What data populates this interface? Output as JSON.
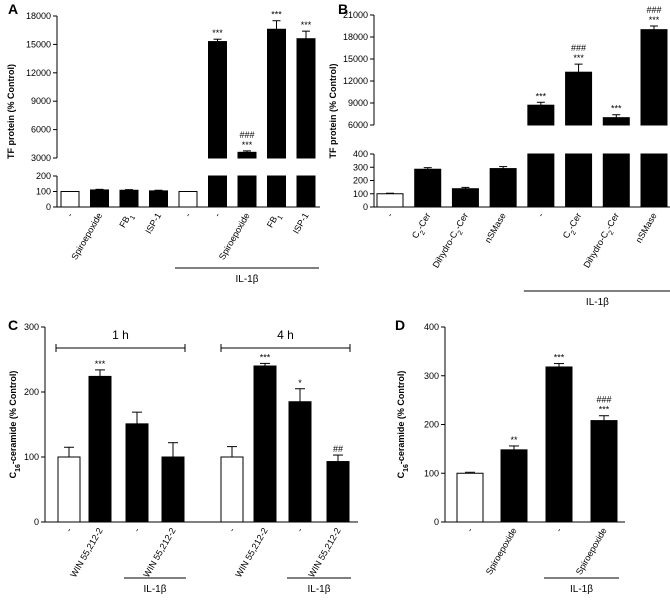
{
  "chart_data": [
    {
      "panel": "A",
      "type": "bar",
      "ylabel": "TF protein (% Control)",
      "broken_axis": true,
      "ylim_lower": [
        0,
        200
      ],
      "ylim_upper": [
        3000,
        18000
      ],
      "yticks_lower": [
        0,
        100,
        200
      ],
      "yticks_upper": [
        3000,
        6000,
        9000,
        12000,
        15000,
        18000
      ],
      "categories": [
        "-",
        "Spiroepoxide",
        "FB1",
        "ISP-1",
        "-",
        "-",
        "Spiroepoxide",
        "FB1",
        "ISP-1"
      ],
      "values": [
        100,
        110,
        108,
        104,
        100,
        15300,
        3600,
        16600,
        15600
      ],
      "errors": [
        0,
        4,
        4,
        4,
        0,
        250,
        150,
        900,
        800
      ],
      "filled": [
        false,
        true,
        true,
        true,
        false,
        true,
        true,
        true,
        true
      ],
      "significance": [
        "",
        "",
        "",
        "",
        "",
        "***",
        "###\n***",
        "***",
        "***"
      ],
      "group_label": "IL-1β"
    },
    {
      "panel": "B",
      "type": "bar",
      "ylabel": "TF protein (% Control)",
      "broken_axis": true,
      "ylim_lower": [
        0,
        400
      ],
      "ylim_upper": [
        6000,
        21000
      ],
      "yticks_lower": [
        0,
        100,
        200,
        300,
        400
      ],
      "yticks_upper": [
        6000,
        9000,
        12000,
        15000,
        18000,
        21000
      ],
      "categories": [
        "-",
        "C2-Cer",
        "Dihydro-C2-Cer",
        "nSMase",
        "-",
        "C2-Cer",
        "Dihydro-C2-Cer",
        "nSMase"
      ],
      "values": [
        100,
        285,
        138,
        290,
        8700,
        13200,
        7000,
        19000
      ],
      "errors": [
        4,
        12,
        10,
        15,
        400,
        1100,
        400,
        500
      ],
      "filled": [
        false,
        true,
        true,
        true,
        true,
        true,
        true,
        true
      ],
      "significance": [
        "",
        "",
        "",
        "",
        "***",
        "###\n***",
        "***",
        "###\n***"
      ],
      "group_label": "IL-1β"
    },
    {
      "panel": "C",
      "type": "bar",
      "ylabel": "C16-ceramide (% Control)",
      "ylim": [
        0,
        300
      ],
      "yticks": [
        0,
        100,
        200,
        300
      ],
      "time_labels": [
        "1 h",
        "4 h"
      ],
      "categories": [
        "-",
        "WIN 55,212-2",
        "-",
        "WIN 55,212-2",
        "-",
        "WIN 55,212-2",
        "-",
        "WIN 55,212-2"
      ],
      "values": [
        100,
        224,
        151,
        100,
        100,
        240,
        185,
        93
      ],
      "errors": [
        15,
        10,
        18,
        22,
        16,
        4,
        20,
        10
      ],
      "filled": [
        false,
        true,
        true,
        true,
        false,
        true,
        true,
        true
      ],
      "significance": [
        "",
        "***",
        "",
        "",
        "",
        "***",
        "*",
        "##"
      ],
      "group_label": "IL-1β"
    },
    {
      "panel": "D",
      "type": "bar",
      "ylabel": "C16-ceramide (% Control)",
      "ylim": [
        0,
        400
      ],
      "yticks": [
        0,
        100,
        200,
        300,
        400
      ],
      "categories": [
        "-",
        "Spiroepoxide",
        "-",
        "Spiroepoxide"
      ],
      "values": [
        100,
        148,
        318,
        208
      ],
      "errors": [
        2,
        8,
        7,
        10
      ],
      "filled": [
        false,
        true,
        true,
        true
      ],
      "significance": [
        "",
        "**",
        "***",
        "###\n***"
      ],
      "group_label": "IL-1β"
    }
  ]
}
